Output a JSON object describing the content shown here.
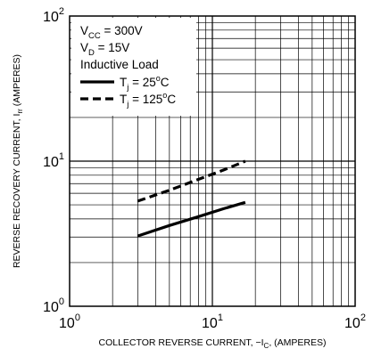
{
  "chart_data": {
    "type": "line",
    "x_scale": "log",
    "y_scale": "log",
    "xlim": [
      1,
      100
    ],
    "ylim": [
      1,
      100
    ],
    "grid": true,
    "xlabel": "COLLECTOR REVERSE CURRENT, −I",
    "xlabel_sub": "C",
    "xlabel_suffix": ", (AMPERES)",
    "ylabel": "REVERSE RECOVERY CURRENT, I",
    "ylabel_sub": "rr",
    "ylabel_suffix": " (AMPERES)",
    "x_ticks": [
      {
        "value": 1,
        "base": "10",
        "exp": "0"
      },
      {
        "value": 10,
        "base": "10",
        "exp": "1"
      },
      {
        "value": 100,
        "base": "10",
        "exp": "2"
      }
    ],
    "y_ticks": [
      {
        "value": 1,
        "base": "10",
        "exp": "0"
      },
      {
        "value": 10,
        "base": "10",
        "exp": "1"
      },
      {
        "value": 100,
        "base": "10",
        "exp": "2"
      }
    ],
    "annotations": [
      {
        "main": "V",
        "sub": "CC",
        "rest": " = 300V"
      },
      {
        "main": "V",
        "sub": "D",
        "rest": " = 15V"
      },
      {
        "main": "Inductive Load",
        "sub": "",
        "rest": ""
      }
    ],
    "legend_position": "top-left",
    "series": [
      {
        "name_main": "T",
        "name_sub": "j",
        "name_rest": " = 25",
        "name_sup": "o",
        "name_end": "C",
        "style": "solid",
        "points": [
          [
            3,
            3.05
          ],
          [
            5,
            3.6
          ],
          [
            8,
            4.15
          ],
          [
            12,
            4.7
          ],
          [
            17,
            5.2
          ]
        ]
      },
      {
        "name_main": "T",
        "name_sub": "j",
        "name_rest": " = 125",
        "name_sup": "o",
        "name_end": "C",
        "style": "dashed",
        "points": [
          [
            3,
            5.3
          ],
          [
            5,
            6.3
          ],
          [
            8,
            7.5
          ],
          [
            12,
            8.7
          ],
          [
            17,
            10.0
          ]
        ]
      }
    ]
  }
}
